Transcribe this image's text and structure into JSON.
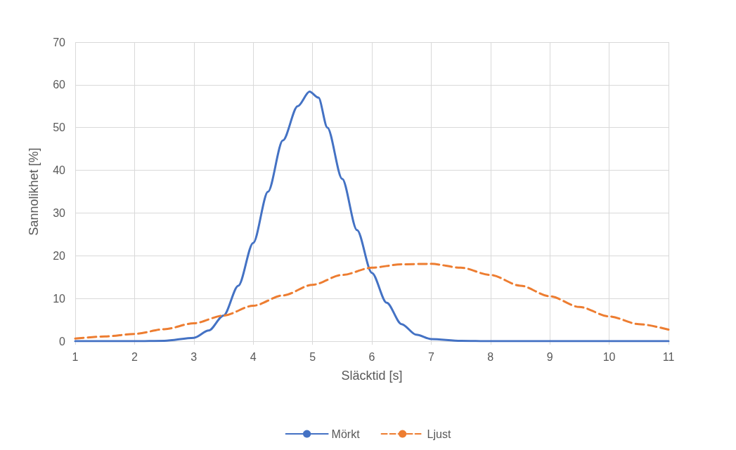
{
  "chart_data": {
    "type": "line",
    "xlabel": "Släcktid [s]",
    "ylabel": "Sannolikhet [%]",
    "xlim": [
      1,
      11
    ],
    "xticks": [
      1,
      2,
      3,
      4,
      5,
      6,
      7,
      8,
      9,
      10,
      11
    ],
    "ylim": [
      0,
      70
    ],
    "yticks": [
      0,
      10,
      20,
      30,
      40,
      50,
      60,
      70
    ],
    "grid": true,
    "legend": "bottom",
    "marker": "none",
    "series": [
      {
        "name": "Mörkt",
        "color": "#4472c4",
        "line_style": "solid",
        "x": [
          1,
          2,
          2.5,
          3,
          3.25,
          3.5,
          3.75,
          4,
          4.25,
          4.5,
          4.75,
          4.95,
          5.1,
          5.25,
          5.5,
          5.75,
          6,
          6.25,
          6.5,
          6.75,
          7,
          7.5,
          8,
          9,
          10,
          11
        ],
        "values": [
          0,
          0,
          0.1,
          0.8,
          2.5,
          6,
          13,
          23,
          35,
          47,
          55,
          58.4,
          57,
          50,
          38,
          26,
          16,
          9,
          4,
          1.5,
          0.5,
          0.1,
          0,
          0,
          0,
          0
        ]
      },
      {
        "name": "Ljust",
        "color": "#ed7d31",
        "line_style": "dashed",
        "x": [
          1,
          1.5,
          2,
          2.5,
          3,
          3.5,
          4,
          4.5,
          5,
          5.5,
          6,
          6.5,
          7,
          7.5,
          8,
          8.5,
          9,
          9.5,
          10,
          10.5,
          11
        ],
        "values": [
          0.6,
          1.1,
          1.7,
          2.8,
          4.2,
          6,
          8.3,
          10.7,
          13.2,
          15.5,
          17.2,
          18,
          18.1,
          17.2,
          15.5,
          13,
          10.5,
          8,
          5.8,
          4,
          2.7
        ]
      }
    ]
  }
}
